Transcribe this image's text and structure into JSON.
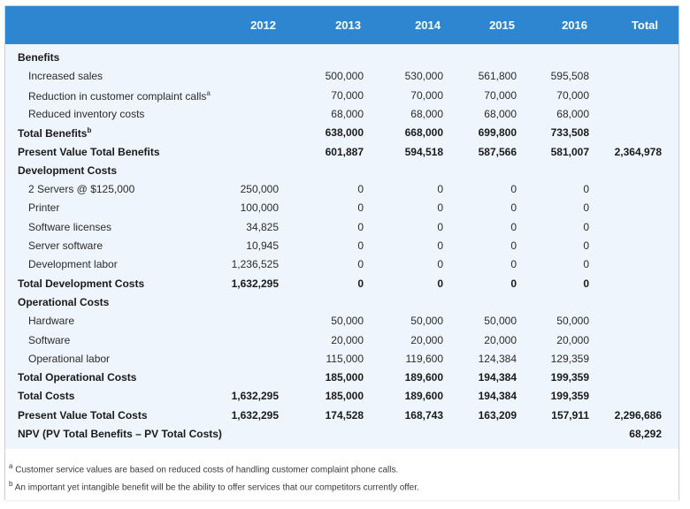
{
  "header": {
    "years": [
      "2012",
      "2013",
      "2014",
      "2015",
      "2016"
    ],
    "total_label": "Total"
  },
  "rows": [
    {
      "kind": "head",
      "label": "Benefits",
      "cells": [
        "",
        "",
        "",
        "",
        "",
        ""
      ]
    },
    {
      "kind": "item",
      "label": "Increased sales",
      "cells": [
        "",
        "500,000",
        "530,000",
        "561,800",
        "595,508",
        ""
      ]
    },
    {
      "kind": "item",
      "label": "Reduction in customer complaint calls",
      "sup": "a",
      "cells": [
        "",
        "70,000",
        "70,000",
        "70,000",
        "70,000",
        ""
      ]
    },
    {
      "kind": "item",
      "label": "Reduced inventory costs",
      "cells": [
        "",
        "68,000",
        "68,000",
        "68,000",
        "68,000",
        ""
      ]
    },
    {
      "kind": "total",
      "label": "Total Benefits",
      "sup": "b",
      "cells": [
        "",
        "638,000",
        "668,000",
        "699,800",
        "733,508",
        ""
      ]
    },
    {
      "kind": "total",
      "label": "Present Value Total Benefits",
      "cells": [
        "",
        "601,887",
        "594,518",
        "587,566",
        "581,007",
        "2,364,978"
      ]
    },
    {
      "kind": "head",
      "label": "Development Costs",
      "cells": [
        "",
        "",
        "",
        "",
        "",
        ""
      ]
    },
    {
      "kind": "item",
      "label": "2 Servers @ $125,000",
      "cells": [
        "250,000",
        "0",
        "0",
        "0",
        "0",
        ""
      ]
    },
    {
      "kind": "item",
      "label": "Printer",
      "cells": [
        "100,000",
        "0",
        "0",
        "0",
        "0",
        ""
      ]
    },
    {
      "kind": "item",
      "label": "Software licenses",
      "cells": [
        "34,825",
        "0",
        "0",
        "0",
        "0",
        ""
      ]
    },
    {
      "kind": "item",
      "label": "Server software",
      "cells": [
        "10,945",
        "0",
        "0",
        "0",
        "0",
        ""
      ]
    },
    {
      "kind": "item",
      "label": "Development labor",
      "cells": [
        "1,236,525",
        "0",
        "0",
        "0",
        "0",
        ""
      ]
    },
    {
      "kind": "total",
      "label": "Total Development Costs",
      "cells": [
        "1,632,295",
        "0",
        "0",
        "0",
        "0",
        ""
      ]
    },
    {
      "kind": "head",
      "label": "Operational Costs",
      "cells": [
        "",
        "",
        "",
        "",
        "",
        ""
      ]
    },
    {
      "kind": "item",
      "label": "Hardware",
      "cells": [
        "",
        "50,000",
        "50,000",
        "50,000",
        "50,000",
        ""
      ]
    },
    {
      "kind": "item",
      "label": "Software",
      "cells": [
        "",
        "20,000",
        "20,000",
        "20,000",
        "20,000",
        ""
      ]
    },
    {
      "kind": "item",
      "label": "Operational labor",
      "cells": [
        "",
        "115,000",
        "119,600",
        "124,384",
        "129,359",
        ""
      ]
    },
    {
      "kind": "total",
      "label": "Total Operational Costs",
      "cells": [
        "",
        "185,000",
        "189,600",
        "194,384",
        "199,359",
        ""
      ]
    },
    {
      "kind": "total",
      "label": "Total Costs",
      "cells": [
        "1,632,295",
        "185,000",
        "189,600",
        "194,384",
        "199,359",
        ""
      ]
    },
    {
      "kind": "total",
      "label": "Present Value Total Costs",
      "cells": [
        "1,632,295",
        "174,528",
        "168,743",
        "163,209",
        "157,911",
        "2,296,686"
      ]
    },
    {
      "kind": "total",
      "label": "NPV (PV Total Benefits – PV Total Costs)",
      "cells": [
        "",
        "",
        "",
        "",
        "",
        "68,292"
      ]
    }
  ],
  "footnotes": [
    {
      "mark": "a",
      "text": "Customer service values are based on reduced costs of handling customer complaint phone calls."
    },
    {
      "mark": "b",
      "text": "An important yet intangible benefit will be the ability to offer services that our competitors currently offer."
    }
  ],
  "colors": {
    "header": "#2e86d1",
    "body": "#eef5fc"
  }
}
